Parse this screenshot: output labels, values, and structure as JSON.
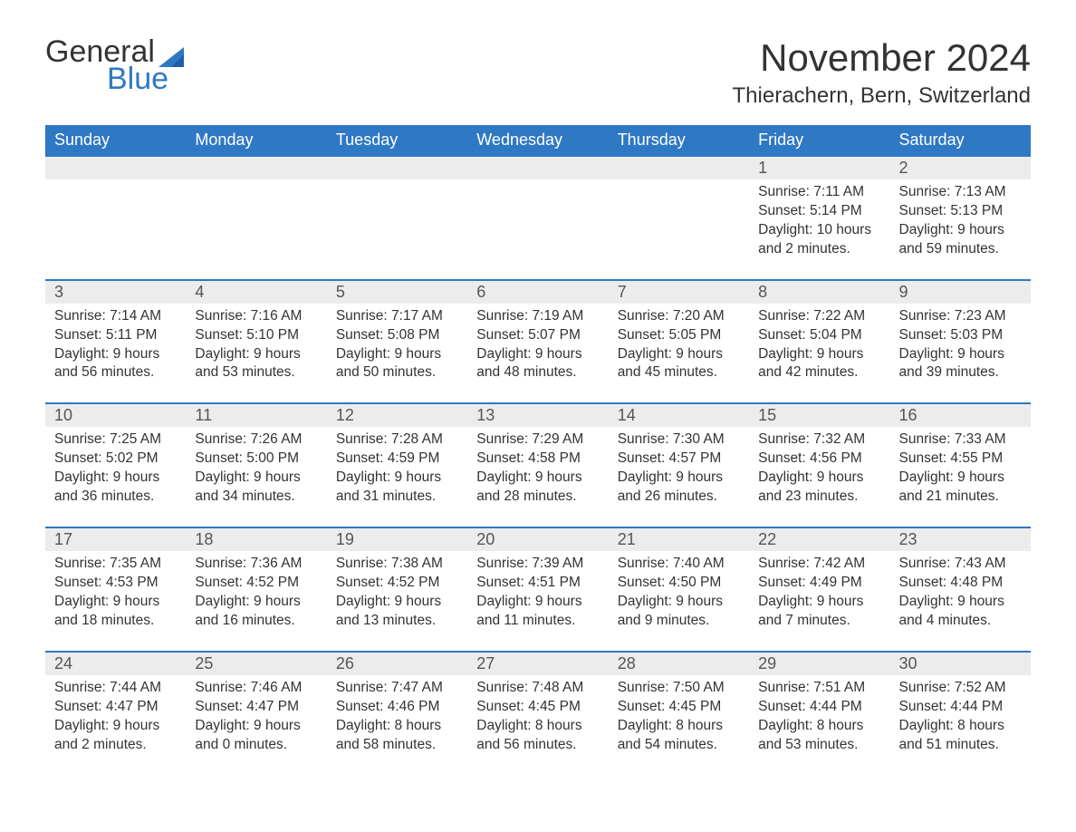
{
  "brand": {
    "word1": "General",
    "word2": "Blue",
    "word1_color": "#333333",
    "word2_color": "#2f78c3",
    "sail_color": "#2f78c3",
    "font_size": 34
  },
  "title": {
    "month": "November 2024",
    "location": "Thierachern, Bern, Switzerland",
    "month_font_size": 42,
    "location_font_size": 24,
    "text_color": "#333333"
  },
  "colors": {
    "header_bg": "#2f78c3",
    "header_text": "#ffffff",
    "daynum_bg": "#ececec",
    "row_border": "#2f78c3",
    "body_text": "#333333",
    "page_bg": "#ffffff"
  },
  "days_of_week": [
    "Sunday",
    "Monday",
    "Tuesday",
    "Wednesday",
    "Thursday",
    "Friday",
    "Saturday"
  ],
  "weeks": [
    [
      null,
      null,
      null,
      null,
      null,
      {
        "n": "1",
        "sunrise": "Sunrise: 7:11 AM",
        "sunset": "Sunset: 5:14 PM",
        "daylight": "Daylight: 10 hours and 2 minutes."
      },
      {
        "n": "2",
        "sunrise": "Sunrise: 7:13 AM",
        "sunset": "Sunset: 5:13 PM",
        "daylight": "Daylight: 9 hours and 59 minutes."
      }
    ],
    [
      {
        "n": "3",
        "sunrise": "Sunrise: 7:14 AM",
        "sunset": "Sunset: 5:11 PM",
        "daylight": "Daylight: 9 hours and 56 minutes."
      },
      {
        "n": "4",
        "sunrise": "Sunrise: 7:16 AM",
        "sunset": "Sunset: 5:10 PM",
        "daylight": "Daylight: 9 hours and 53 minutes."
      },
      {
        "n": "5",
        "sunrise": "Sunrise: 7:17 AM",
        "sunset": "Sunset: 5:08 PM",
        "daylight": "Daylight: 9 hours and 50 minutes."
      },
      {
        "n": "6",
        "sunrise": "Sunrise: 7:19 AM",
        "sunset": "Sunset: 5:07 PM",
        "daylight": "Daylight: 9 hours and 48 minutes."
      },
      {
        "n": "7",
        "sunrise": "Sunrise: 7:20 AM",
        "sunset": "Sunset: 5:05 PM",
        "daylight": "Daylight: 9 hours and 45 minutes."
      },
      {
        "n": "8",
        "sunrise": "Sunrise: 7:22 AM",
        "sunset": "Sunset: 5:04 PM",
        "daylight": "Daylight: 9 hours and 42 minutes."
      },
      {
        "n": "9",
        "sunrise": "Sunrise: 7:23 AM",
        "sunset": "Sunset: 5:03 PM",
        "daylight": "Daylight: 9 hours and 39 minutes."
      }
    ],
    [
      {
        "n": "10",
        "sunrise": "Sunrise: 7:25 AM",
        "sunset": "Sunset: 5:02 PM",
        "daylight": "Daylight: 9 hours and 36 minutes."
      },
      {
        "n": "11",
        "sunrise": "Sunrise: 7:26 AM",
        "sunset": "Sunset: 5:00 PM",
        "daylight": "Daylight: 9 hours and 34 minutes."
      },
      {
        "n": "12",
        "sunrise": "Sunrise: 7:28 AM",
        "sunset": "Sunset: 4:59 PM",
        "daylight": "Daylight: 9 hours and 31 minutes."
      },
      {
        "n": "13",
        "sunrise": "Sunrise: 7:29 AM",
        "sunset": "Sunset: 4:58 PM",
        "daylight": "Daylight: 9 hours and 28 minutes."
      },
      {
        "n": "14",
        "sunrise": "Sunrise: 7:30 AM",
        "sunset": "Sunset: 4:57 PM",
        "daylight": "Daylight: 9 hours and 26 minutes."
      },
      {
        "n": "15",
        "sunrise": "Sunrise: 7:32 AM",
        "sunset": "Sunset: 4:56 PM",
        "daylight": "Daylight: 9 hours and 23 minutes."
      },
      {
        "n": "16",
        "sunrise": "Sunrise: 7:33 AM",
        "sunset": "Sunset: 4:55 PM",
        "daylight": "Daylight: 9 hours and 21 minutes."
      }
    ],
    [
      {
        "n": "17",
        "sunrise": "Sunrise: 7:35 AM",
        "sunset": "Sunset: 4:53 PM",
        "daylight": "Daylight: 9 hours and 18 minutes."
      },
      {
        "n": "18",
        "sunrise": "Sunrise: 7:36 AM",
        "sunset": "Sunset: 4:52 PM",
        "daylight": "Daylight: 9 hours and 16 minutes."
      },
      {
        "n": "19",
        "sunrise": "Sunrise: 7:38 AM",
        "sunset": "Sunset: 4:52 PM",
        "daylight": "Daylight: 9 hours and 13 minutes."
      },
      {
        "n": "20",
        "sunrise": "Sunrise: 7:39 AM",
        "sunset": "Sunset: 4:51 PM",
        "daylight": "Daylight: 9 hours and 11 minutes."
      },
      {
        "n": "21",
        "sunrise": "Sunrise: 7:40 AM",
        "sunset": "Sunset: 4:50 PM",
        "daylight": "Daylight: 9 hours and 9 minutes."
      },
      {
        "n": "22",
        "sunrise": "Sunrise: 7:42 AM",
        "sunset": "Sunset: 4:49 PM",
        "daylight": "Daylight: 9 hours and 7 minutes."
      },
      {
        "n": "23",
        "sunrise": "Sunrise: 7:43 AM",
        "sunset": "Sunset: 4:48 PM",
        "daylight": "Daylight: 9 hours and 4 minutes."
      }
    ],
    [
      {
        "n": "24",
        "sunrise": "Sunrise: 7:44 AM",
        "sunset": "Sunset: 4:47 PM",
        "daylight": "Daylight: 9 hours and 2 minutes."
      },
      {
        "n": "25",
        "sunrise": "Sunrise: 7:46 AM",
        "sunset": "Sunset: 4:47 PM",
        "daylight": "Daylight: 9 hours and 0 minutes."
      },
      {
        "n": "26",
        "sunrise": "Sunrise: 7:47 AM",
        "sunset": "Sunset: 4:46 PM",
        "daylight": "Daylight: 8 hours and 58 minutes."
      },
      {
        "n": "27",
        "sunrise": "Sunrise: 7:48 AM",
        "sunset": "Sunset: 4:45 PM",
        "daylight": "Daylight: 8 hours and 56 minutes."
      },
      {
        "n": "28",
        "sunrise": "Sunrise: 7:50 AM",
        "sunset": "Sunset: 4:45 PM",
        "daylight": "Daylight: 8 hours and 54 minutes."
      },
      {
        "n": "29",
        "sunrise": "Sunrise: 7:51 AM",
        "sunset": "Sunset: 4:44 PM",
        "daylight": "Daylight: 8 hours and 53 minutes."
      },
      {
        "n": "30",
        "sunrise": "Sunrise: 7:52 AM",
        "sunset": "Sunset: 4:44 PM",
        "daylight": "Daylight: 8 hours and 51 minutes."
      }
    ]
  ]
}
